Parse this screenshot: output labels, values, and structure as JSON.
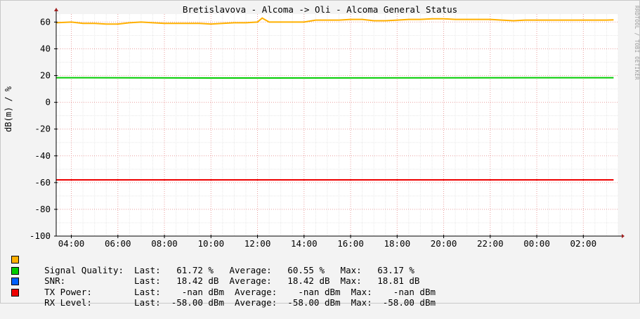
{
  "chart_data": {
    "type": "line",
    "title": "Bretislavova - Alcoma -> Oli - Alcoma General Status",
    "ylabel": "dB(m) / %",
    "watermark": "RRDTOOL / TOBI OETIKER",
    "ylim": [
      -100,
      66
    ],
    "yticks": [
      60,
      40,
      20,
      0,
      -20,
      -40,
      -60,
      -80,
      -100
    ],
    "x_ticks": [
      "04:00",
      "06:00",
      "08:00",
      "10:00",
      "12:00",
      "14:00",
      "16:00",
      "18:00",
      "20:00",
      "22:00",
      "00:00",
      "02:00"
    ],
    "x_tick_hours": [
      4,
      6,
      8,
      10,
      12,
      14,
      16,
      18,
      20,
      22,
      24,
      26
    ],
    "xlim_hours": [
      3.35,
      27.5
    ],
    "grid": true,
    "series": [
      {
        "name": "Signal Quality",
        "color": "#ffb000",
        "x": [
          3.35,
          4.0,
          4.5,
          5.0,
          5.5,
          6.0,
          6.5,
          7.0,
          7.5,
          8.0,
          8.5,
          9.0,
          9.5,
          10.0,
          10.5,
          11.0,
          11.5,
          12.0,
          12.2,
          12.5,
          13.0,
          13.5,
          14.0,
          14.5,
          15.0,
          15.5,
          16.0,
          16.5,
          17.0,
          17.5,
          18.0,
          18.5,
          19.0,
          19.5,
          20.0,
          20.5,
          21.0,
          21.5,
          22.0,
          22.5,
          23.0,
          23.5,
          24.0,
          24.5,
          25.0,
          25.5,
          26.0,
          26.5,
          27.0,
          27.3
        ],
        "values": [
          59.5,
          60.0,
          59.0,
          59.0,
          58.5,
          58.5,
          59.5,
          60.0,
          59.5,
          59.0,
          59.0,
          59.0,
          59.0,
          58.5,
          59.0,
          59.5,
          59.5,
          60.0,
          63.0,
          60.0,
          60.0,
          60.0,
          60.0,
          61.5,
          61.5,
          61.5,
          62.0,
          62.0,
          61.0,
          61.0,
          61.5,
          62.0,
          62.0,
          62.5,
          62.5,
          62.0,
          62.0,
          62.0,
          62.0,
          61.5,
          61.0,
          61.5,
          61.5,
          61.5,
          61.5,
          61.5,
          61.5,
          61.5,
          61.5,
          61.7
        ]
      },
      {
        "name": "SNR",
        "color": "#00cc00",
        "x": [
          3.35,
          10.0,
          27.3
        ],
        "values": [
          18.4,
          18.2,
          18.4
        ]
      },
      {
        "name": "TX Power",
        "color": "#0000ff",
        "x": [],
        "values": []
      },
      {
        "name": "RX Level",
        "color": "#ee0000",
        "x": [
          3.35,
          27.3
        ],
        "values": [
          -58.0,
          -58.0
        ]
      }
    ]
  },
  "legend": [
    {
      "color": "#ffb000",
      "text": "Signal Quality:  Last:   61.72 %   Average:   60.55 %   Max:   63.17 %"
    },
    {
      "color": "#00cc00",
      "text": "SNR:             Last:   18.42 dB  Average:   18.42 dB  Max:   18.81 dB"
    },
    {
      "color": "#0060ff",
      "text": "TX Power:        Last:    -nan dBm  Average:    -nan dBm  Max:    -nan dBm"
    },
    {
      "color": "#ee0000",
      "text": "RX Level:        Last:  -58.00 dBm  Average:  -58.00 dBm  Max:  -58.00 dBm"
    }
  ]
}
